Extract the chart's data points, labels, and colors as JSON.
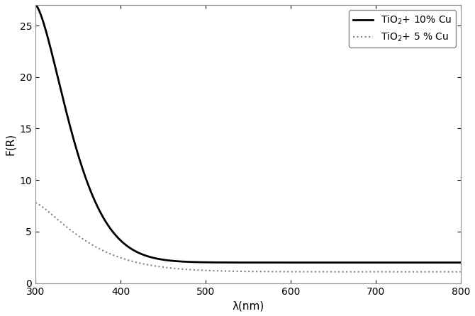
{
  "xlabel": "λ(nm)",
  "ylabel": "F(R)",
  "xlim": [
    300,
    800
  ],
  "ylim": [
    0,
    27
  ],
  "yticks": [
    0,
    5,
    10,
    15,
    20,
    25
  ],
  "xticks": [
    300,
    400,
    500,
    600,
    700,
    800
  ],
  "line1_label": "TiO$_2$+ 10% Cu",
  "line2_label": "TiO$_2$+ 5 % Cu",
  "line1_color": "#000000",
  "line2_color": "#808080",
  "background_color": "#ffffff",
  "legend_loc": "upper right"
}
